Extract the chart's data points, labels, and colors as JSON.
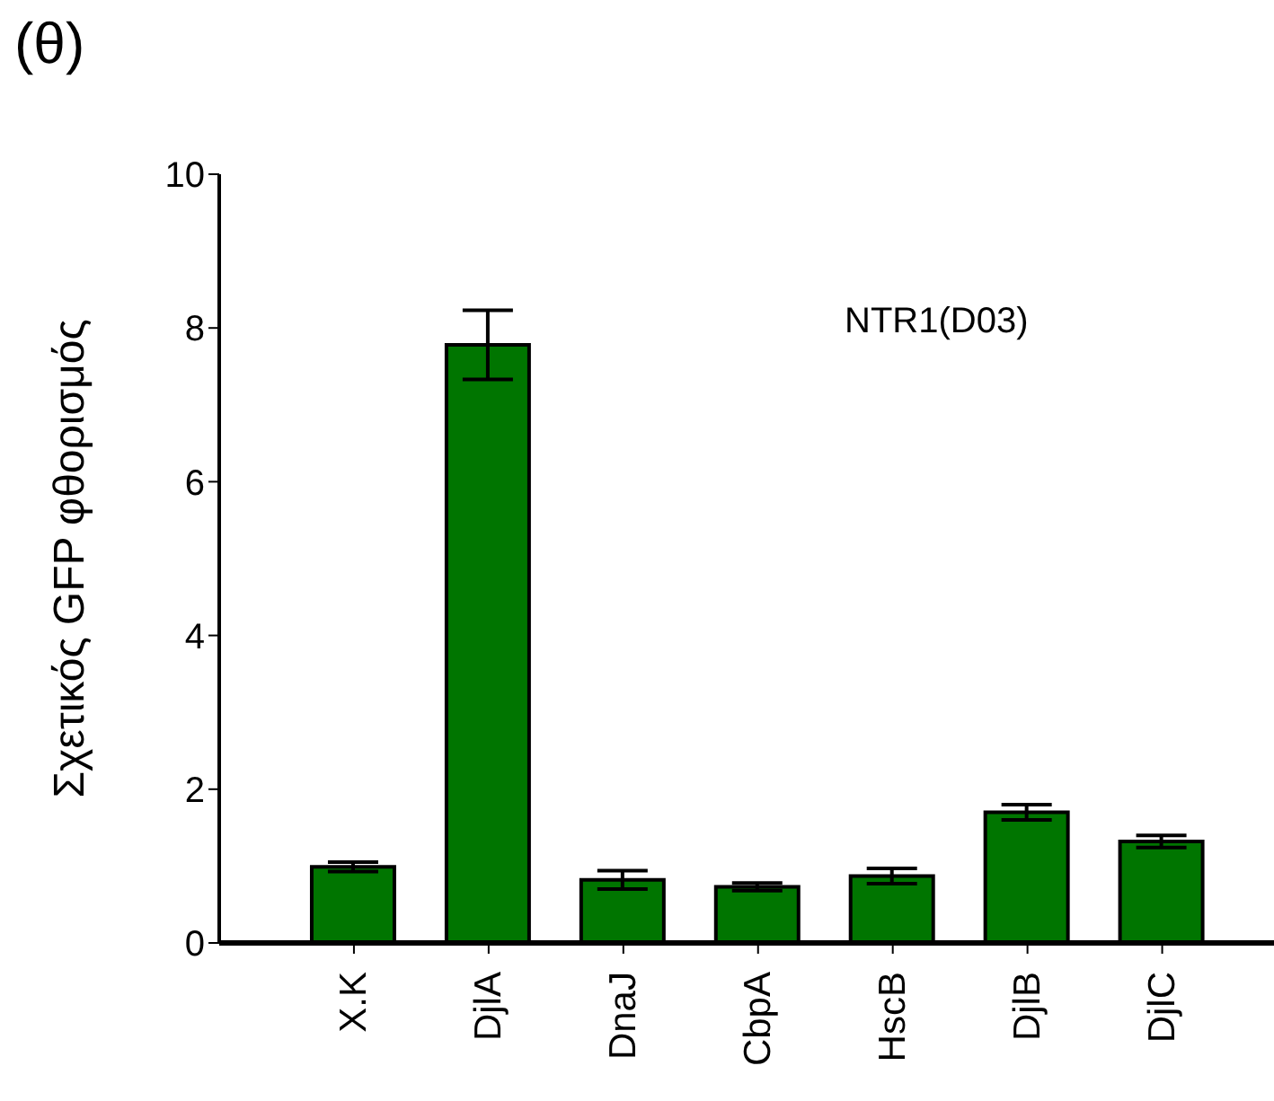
{
  "chart_data": {
    "type": "bar",
    "title": "(θ)",
    "ylabel": "Σχετικός GFP φθορισμός",
    "categories": [
      "Χ.Κ",
      "DjlA",
      "DnaJ",
      "CbpA",
      "HscB",
      "DjlB",
      "DjlC"
    ],
    "values": [
      0.99,
      7.78,
      0.82,
      0.73,
      0.87,
      1.7,
      1.32
    ],
    "errors": [
      0.06,
      0.45,
      0.12,
      0.05,
      0.1,
      0.1,
      0.08
    ],
    "color": "#007500",
    "ylim": [
      0,
      10
    ],
    "yticks": [
      0,
      2,
      4,
      6,
      8,
      10
    ],
    "annotations": [
      "NTR1(D03)"
    ]
  }
}
